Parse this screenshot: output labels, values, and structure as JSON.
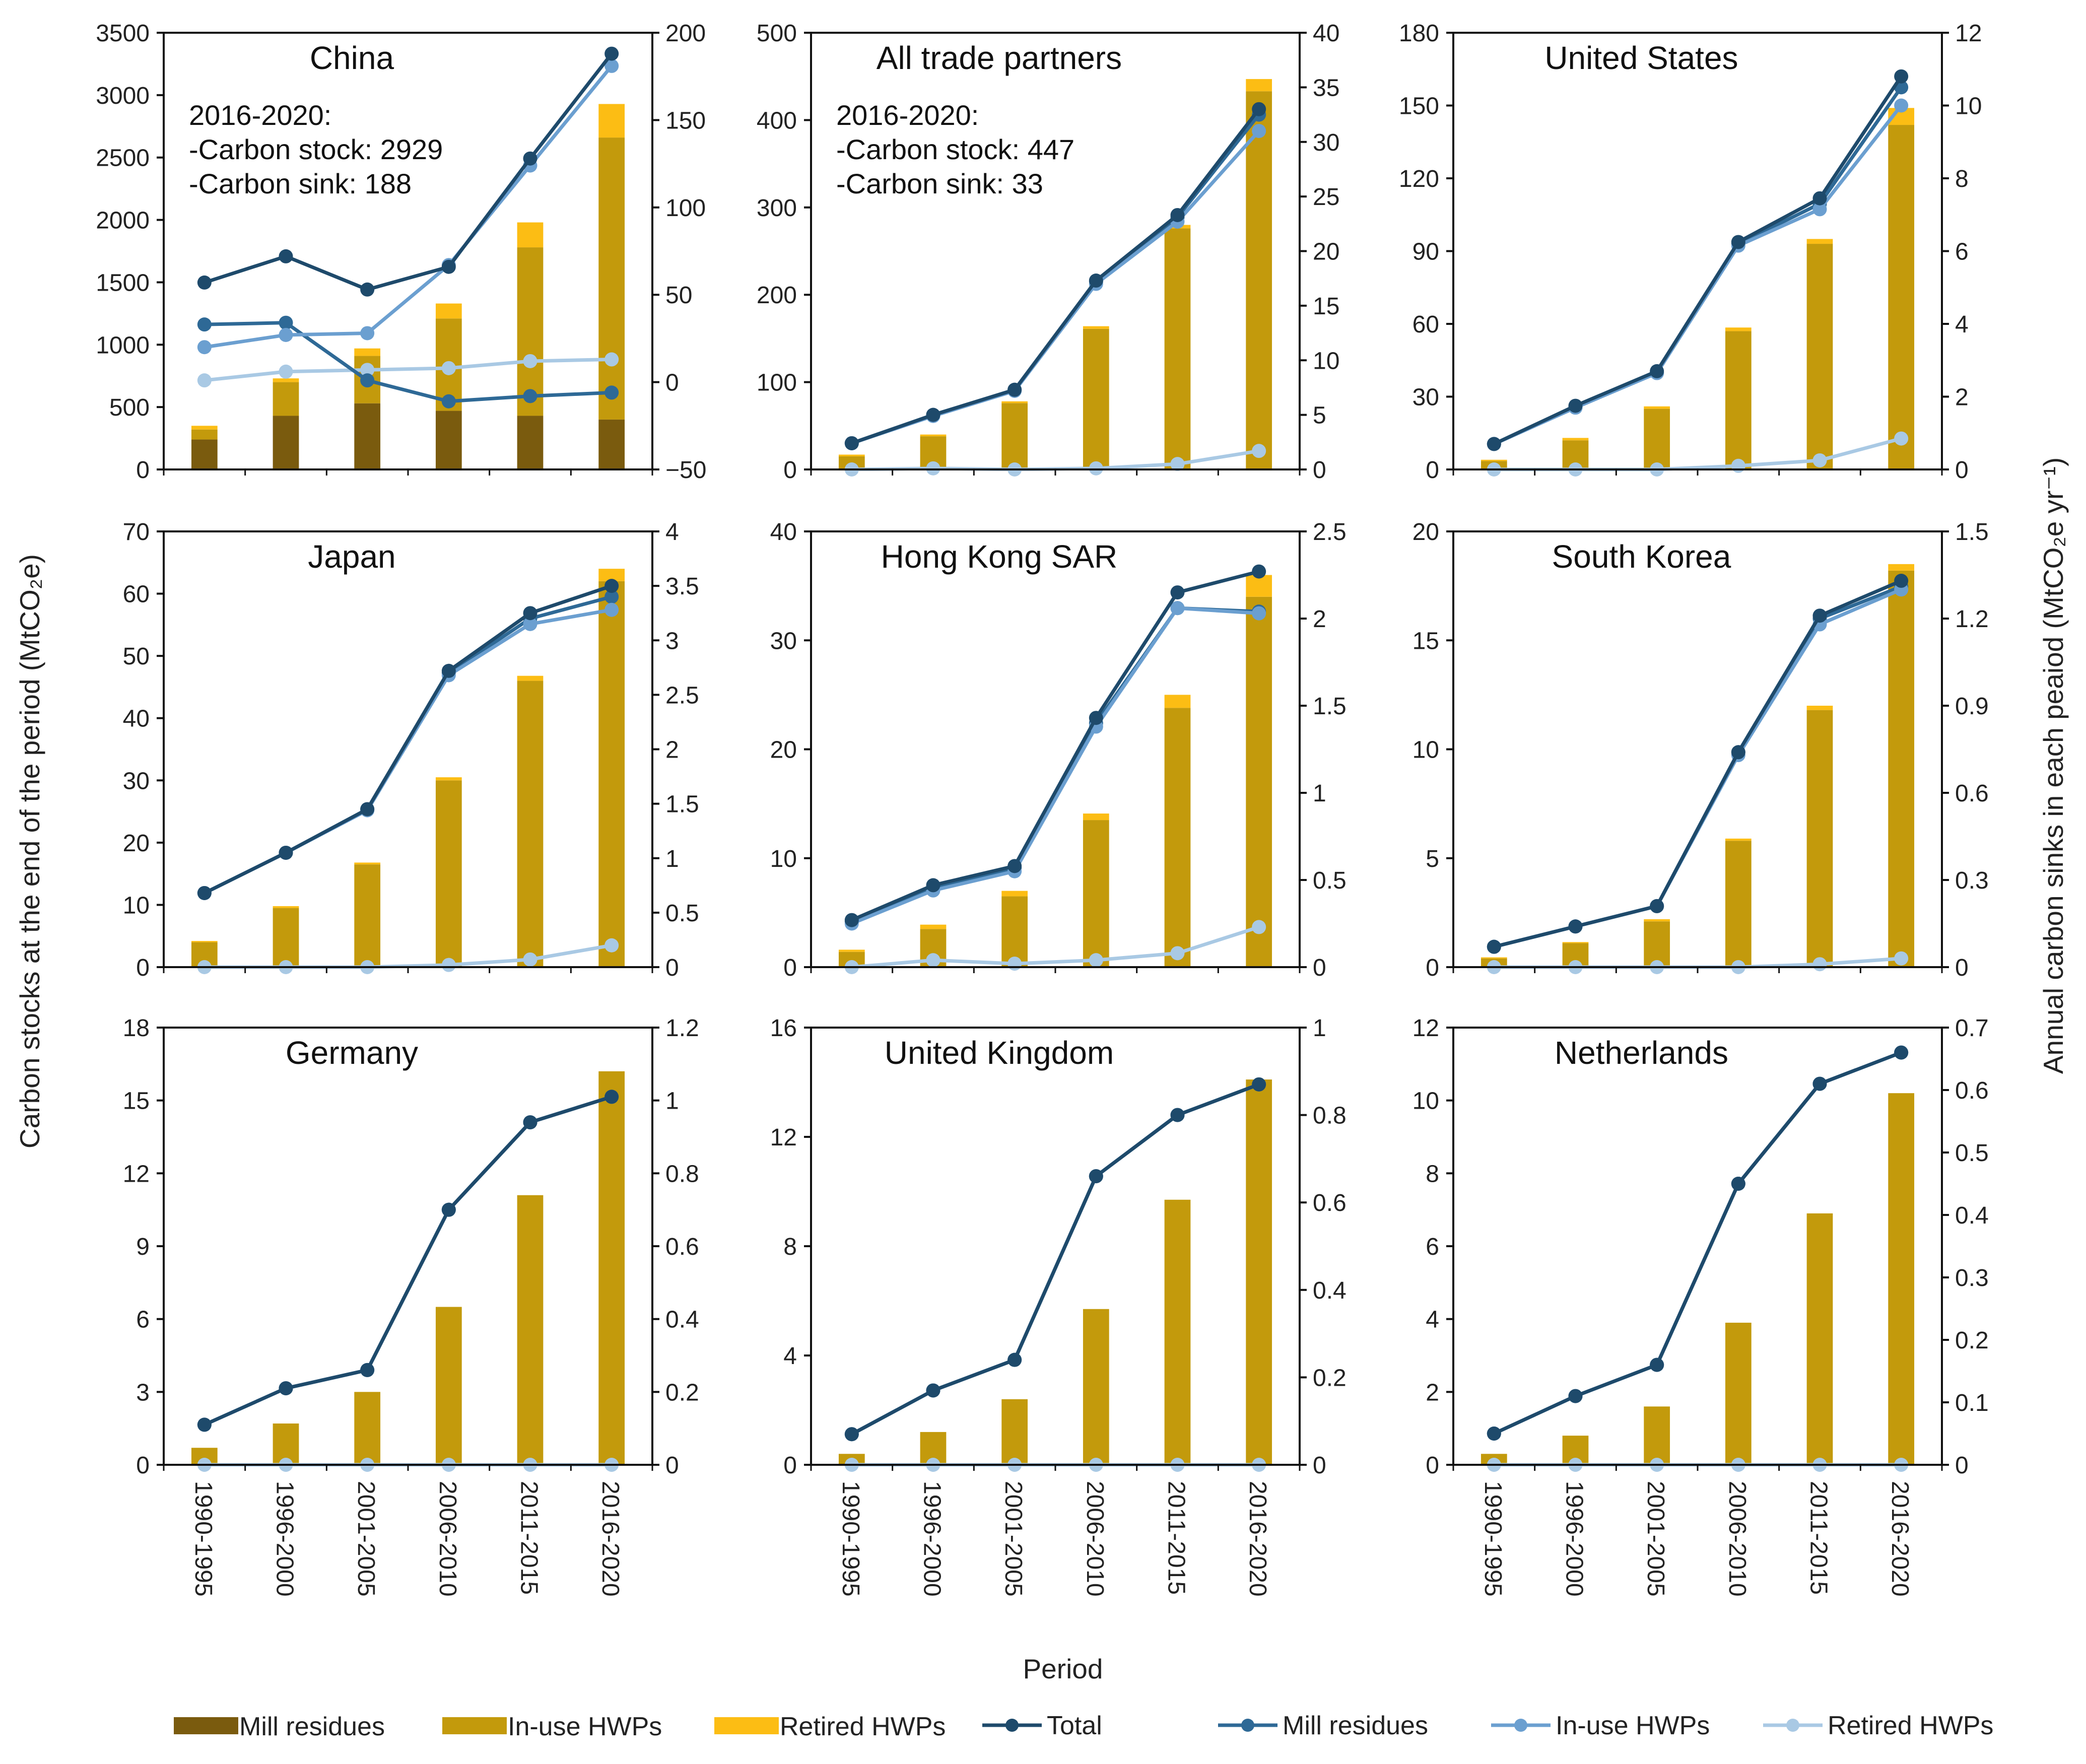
{
  "figure": {
    "left_axis_label": "Carbon stocks at the end of the period (MtCO₂e)",
    "right_axis_label": "Annual carbon sinks in each peaiod (MtCO₂e yr⁻¹)",
    "x_axis_label": "Period"
  },
  "colors": {
    "bar_mill": "#7a5b0e",
    "bar_inuse": "#c39a0c",
    "bar_retired": "#fcbd14",
    "line_total": "#1e4a6b",
    "line_mill": "#2e6996",
    "line_inuse": "#6b9fd0",
    "line_retired": "#a9c9e4"
  },
  "legend": [
    {
      "label": "Mill residues",
      "kind": "bar",
      "color": "#7a5b0e"
    },
    {
      "label": "In-use HWPs",
      "kind": "bar",
      "color": "#c39a0c"
    },
    {
      "label": "Retired HWPs",
      "kind": "bar",
      "color": "#fcbd14"
    },
    {
      "label": "Total",
      "kind": "line",
      "color": "#1e4a6b"
    },
    {
      "label": "Mill residues",
      "kind": "line",
      "color": "#2e6996"
    },
    {
      "label": "In-use HWPs",
      "kind": "line",
      "color": "#6b9fd0"
    },
    {
      "label": "Retired HWPs",
      "kind": "line",
      "color": "#a9c9e4"
    }
  ],
  "chart_data": [
    {
      "type": "bar+line",
      "title": "China",
      "categories": [
        "1990-1995",
        "1996-2000",
        "2001-2005",
        "2006-2010",
        "2011-2015",
        "2016-2020"
      ],
      "ylim_left": [
        0,
        3500
      ],
      "yticks_left": [
        "0",
        "500",
        "1000",
        "1500",
        "2000",
        "2500",
        "3000",
        "3500"
      ],
      "ylim_right": [
        -50,
        200
      ],
      "yticks_right": [
        "−50",
        "0",
        "50",
        "100",
        "150",
        "200"
      ],
      "stock_bars": {
        "mill_residues": [
          240,
          430,
          530,
          470,
          430,
          400
        ],
        "in_use_hwps": [
          80,
          270,
          380,
          740,
          1350,
          2260
        ],
        "retired_hwps": [
          30,
          30,
          60,
          120,
          200,
          269
        ]
      },
      "sink_lines": {
        "total": [
          57,
          72,
          53,
          66,
          128,
          188
        ],
        "mill_residues": [
          33,
          34,
          1,
          -11,
          -8,
          -6
        ],
        "in_use_hwps": [
          20,
          27,
          28,
          67,
          124,
          181
        ],
        "retired_hwps": [
          1,
          6,
          7,
          8,
          12,
          13
        ]
      },
      "annotation": [
        "2016-2020:",
        "-Carbon stock: 2929",
        "-Carbon sink: 188"
      ],
      "show_x_labels": false
    },
    {
      "type": "bar+line",
      "title": "All trade partners",
      "categories": [
        "1990-1995",
        "1996-2000",
        "2001-2005",
        "2006-2010",
        "2011-2015",
        "2016-2020"
      ],
      "ylim_left": [
        0,
        500
      ],
      "yticks_left": [
        "0",
        "100",
        "200",
        "300",
        "400",
        "500"
      ],
      "ylim_right": [
        0,
        40
      ],
      "yticks_right": [
        "0",
        "5",
        "10",
        "15",
        "20",
        "25",
        "30",
        "35",
        "40"
      ],
      "stock_bars": {
        "mill_residues": [
          0,
          0,
          0,
          0,
          0,
          0
        ],
        "in_use_hwps": [
          15,
          38,
          76,
          161,
          276,
          433
        ],
        "retired_hwps": [
          2,
          2,
          2,
          3,
          4,
          14
        ]
      },
      "sink_lines": {
        "total": [
          2.4,
          5,
          7.3,
          17.3,
          23.3,
          33
        ],
        "mill_residues": [
          2.4,
          5,
          7.3,
          17.2,
          23.1,
          32.5
        ],
        "in_use_hwps": [
          2.4,
          4.9,
          7.2,
          17,
          22.7,
          31
        ],
        "retired_hwps": [
          0,
          0.1,
          0,
          0.1,
          0.5,
          1.7
        ]
      },
      "annotation": [
        "2016-2020:",
        "-Carbon stock: 447",
        "-Carbon sink: 33"
      ],
      "show_x_labels": false
    },
    {
      "type": "bar+line",
      "title": "United States",
      "categories": [
        "1990-1995",
        "1996-2000",
        "2001-2005",
        "2006-2010",
        "2011-2015",
        "2016-2020"
      ],
      "ylim_left": [
        0,
        180
      ],
      "yticks_left": [
        "0",
        "30",
        "60",
        "90",
        "120",
        "150",
        "180"
      ],
      "ylim_right": [
        0,
        12
      ],
      "yticks_right": [
        "0",
        "2",
        "4",
        "6",
        "8",
        "10",
        "12"
      ],
      "stock_bars": {
        "mill_residues": [
          0,
          0,
          0,
          0,
          0,
          0
        ],
        "in_use_hwps": [
          3.5,
          12,
          25,
          57,
          93,
          142
        ],
        "retired_hwps": [
          0.5,
          1,
          1,
          1.5,
          2,
          7
        ]
      },
      "sink_lines": {
        "total": [
          0.7,
          1.75,
          2.7,
          6.25,
          7.45,
          10.8
        ],
        "mill_residues": [
          0.7,
          1.7,
          2.65,
          6.2,
          7.3,
          10.5
        ],
        "in_use_hwps": [
          0.7,
          1.7,
          2.65,
          6.15,
          7.15,
          10
        ],
        "retired_hwps": [
          0,
          0,
          0,
          0.1,
          0.25,
          0.85
        ]
      },
      "annotation": [],
      "show_x_labels": false
    },
    {
      "type": "bar+line",
      "title": "Japan",
      "categories": [
        "1990-1995",
        "1996-2000",
        "2001-2005",
        "2006-2010",
        "2011-2015",
        "2016-2020"
      ],
      "ylim_left": [
        0,
        70
      ],
      "yticks_left": [
        "0",
        "10",
        "20",
        "30",
        "40",
        "50",
        "60",
        "70"
      ],
      "ylim_right": [
        0,
        4
      ],
      "yticks_right": [
        "0",
        "0.5",
        "1",
        "1.5",
        "2",
        "2.5",
        "3",
        "3.5",
        "4"
      ],
      "stock_bars": {
        "mill_residues": [
          0,
          0,
          0,
          0,
          0,
          0
        ],
        "in_use_hwps": [
          4,
          9.5,
          16.5,
          30,
          46,
          62
        ],
        "retired_hwps": [
          0.2,
          0.3,
          0.3,
          0.5,
          0.8,
          2
        ]
      },
      "sink_lines": {
        "total": [
          0.68,
          1.05,
          1.45,
          2.72,
          3.25,
          3.5
        ],
        "mill_residues": [
          0.68,
          1.05,
          1.45,
          2.7,
          3.2,
          3.4
        ],
        "in_use_hwps": [
          0.68,
          1.05,
          1.44,
          2.68,
          3.15,
          3.28
        ],
        "retired_hwps": [
          0,
          0,
          0,
          0.02,
          0.07,
          0.2
        ]
      },
      "annotation": [],
      "show_x_labels": false
    },
    {
      "type": "bar+line",
      "title": "Hong Kong SAR",
      "categories": [
        "1990-1995",
        "1996-2000",
        "2001-2005",
        "2006-2010",
        "2011-2015",
        "2016-2020"
      ],
      "ylim_left": [
        0,
        40
      ],
      "yticks_left": [
        "0",
        "10",
        "20",
        "30",
        "40"
      ],
      "ylim_right": [
        0,
        2.5
      ],
      "yticks_right": [
        "0",
        "0.5",
        "1",
        "1.5",
        "2",
        "2.5"
      ],
      "stock_bars": {
        "mill_residues": [
          0,
          0,
          0,
          0,
          0,
          0
        ],
        "in_use_hwps": [
          1.4,
          3.5,
          6.5,
          13.5,
          23.8,
          34
        ],
        "retired_hwps": [
          0.2,
          0.4,
          0.5,
          0.6,
          1.2,
          2
        ]
      },
      "sink_lines": {
        "total": [
          0.27,
          0.47,
          0.58,
          1.43,
          2.15,
          2.27
        ],
        "mill_residues": [
          0.26,
          0.45,
          0.57,
          1.4,
          2.06,
          2.04
        ],
        "in_use_hwps": [
          0.25,
          0.44,
          0.55,
          1.38,
          2.06,
          2.03
        ],
        "retired_hwps": [
          0,
          0.04,
          0.02,
          0.04,
          0.08,
          0.23
        ]
      },
      "annotation": [],
      "show_x_labels": false
    },
    {
      "type": "bar+line",
      "title": "South Korea",
      "categories": [
        "1990-1995",
        "1996-2000",
        "2001-2005",
        "2006-2010",
        "2011-2015",
        "2016-2020"
      ],
      "ylim_left": [
        0,
        20
      ],
      "yticks_left": [
        "0",
        "5",
        "10",
        "15",
        "20"
      ],
      "ylim_right": [
        0,
        1.5
      ],
      "yticks_right": [
        "0",
        "0.3",
        "0.6",
        "0.9",
        "1.2",
        "1.5"
      ],
      "stock_bars": {
        "mill_residues": [
          0,
          0,
          0,
          0,
          0,
          0
        ],
        "in_use_hwps": [
          0.4,
          1.1,
          2.1,
          5.8,
          11.8,
          18.2
        ],
        "retired_hwps": [
          0.05,
          0.05,
          0.1,
          0.1,
          0.2,
          0.3
        ]
      },
      "sink_lines": {
        "total": [
          0.07,
          0.14,
          0.21,
          0.74,
          1.21,
          1.33
        ],
        "mill_residues": [
          0.07,
          0.14,
          0.21,
          0.74,
          1.2,
          1.31
        ],
        "in_use_hwps": [
          0.07,
          0.14,
          0.21,
          0.73,
          1.18,
          1.3
        ],
        "retired_hwps": [
          0,
          0,
          0,
          0,
          0.01,
          0.03
        ]
      },
      "annotation": [],
      "show_x_labels": false
    },
    {
      "type": "bar+line",
      "title": "Germany",
      "categories": [
        "1990-1995",
        "1996-2000",
        "2001-2005",
        "2006-2010",
        "2011-2015",
        "2016-2020"
      ],
      "ylim_left": [
        0,
        18
      ],
      "yticks_left": [
        "0",
        "3",
        "6",
        "9",
        "12",
        "15",
        "18"
      ],
      "ylim_right": [
        0,
        1.2
      ],
      "yticks_right": [
        "0",
        "0.2",
        "0.4",
        "0.6",
        "0.8",
        "1",
        "1.2"
      ],
      "stock_bars": {
        "mill_residues": [
          0,
          0,
          0,
          0,
          0,
          0
        ],
        "in_use_hwps": [
          0.7,
          1.7,
          3,
          6.5,
          11.1,
          16.2
        ],
        "retired_hwps": [
          0,
          0,
          0,
          0,
          0,
          0
        ]
      },
      "sink_lines": {
        "total": [
          0.11,
          0.21,
          0.26,
          0.7,
          0.94,
          1.01
        ],
        "mill_residues": [
          0.11,
          0.21,
          0.26,
          0.7,
          0.94,
          1.01
        ],
        "in_use_hwps": [
          0.11,
          0.21,
          0.26,
          0.7,
          0.94,
          1.01
        ],
        "retired_hwps": [
          0,
          0,
          0,
          0,
          0,
          0
        ]
      },
      "annotation": [],
      "show_x_labels": true
    },
    {
      "type": "bar+line",
      "title": "United Kingdom",
      "categories": [
        "1990-1995",
        "1996-2000",
        "2001-2005",
        "2006-2010",
        "2011-2015",
        "2016-2020"
      ],
      "ylim_left": [
        0,
        16
      ],
      "yticks_left": [
        "0",
        "4",
        "8",
        "12",
        "16"
      ],
      "ylim_right": [
        0,
        1
      ],
      "yticks_right": [
        "0",
        "0.2",
        "0.4",
        "0.6",
        "0.8",
        "1"
      ],
      "stock_bars": {
        "mill_residues": [
          0,
          0,
          0,
          0,
          0,
          0
        ],
        "in_use_hwps": [
          0.4,
          1.2,
          2.4,
          5.7,
          9.7,
          14.1
        ],
        "retired_hwps": [
          0,
          0,
          0,
          0,
          0,
          0
        ]
      },
      "sink_lines": {
        "total": [
          0.07,
          0.17,
          0.24,
          0.66,
          0.8,
          0.87
        ],
        "mill_residues": [
          0.07,
          0.17,
          0.24,
          0.66,
          0.8,
          0.87
        ],
        "in_use_hwps": [
          0.07,
          0.17,
          0.24,
          0.66,
          0.8,
          0.87
        ],
        "retired_hwps": [
          0,
          0,
          0,
          0,
          0,
          0
        ]
      },
      "annotation": [],
      "show_x_labels": true
    },
    {
      "type": "bar+line",
      "title": "Netherlands",
      "categories": [
        "1990-1995",
        "1996-2000",
        "2001-2005",
        "2006-2010",
        "2011-2015",
        "2016-2020"
      ],
      "ylim_left": [
        0,
        12
      ],
      "yticks_left": [
        "0",
        "2",
        "4",
        "6",
        "8",
        "10",
        "12"
      ],
      "ylim_right": [
        0,
        0.7
      ],
      "yticks_right": [
        "0",
        "0.1",
        "0.2",
        "0.3",
        "0.4",
        "0.5",
        "0.6",
        "0.7"
      ],
      "stock_bars": {
        "mill_residues": [
          0,
          0,
          0,
          0,
          0,
          0
        ],
        "in_use_hwps": [
          0.3,
          0.8,
          1.6,
          3.9,
          6.9,
          10.2
        ],
        "retired_hwps": [
          0,
          0,
          0,
          0,
          0,
          0
        ]
      },
      "sink_lines": {
        "total": [
          0.05,
          0.11,
          0.16,
          0.45,
          0.61,
          0.66
        ],
        "mill_residues": [
          0.05,
          0.11,
          0.16,
          0.45,
          0.61,
          0.66
        ],
        "in_use_hwps": [
          0.05,
          0.11,
          0.16,
          0.45,
          0.61,
          0.66
        ],
        "retired_hwps": [
          0,
          0,
          0,
          0,
          0,
          0
        ]
      },
      "annotation": [],
      "show_x_labels": true
    }
  ]
}
